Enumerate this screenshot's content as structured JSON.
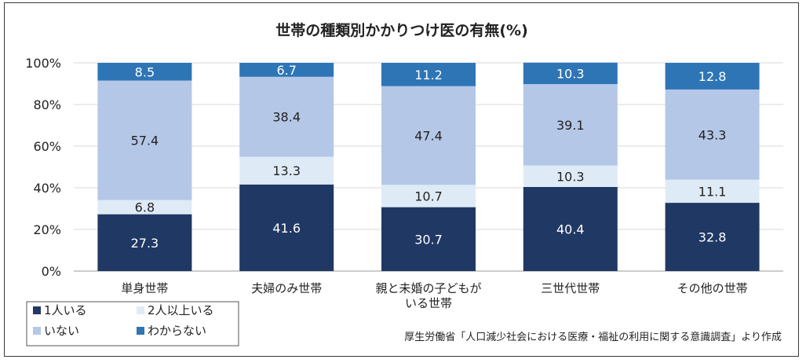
{
  "chart_data": {
    "type": "bar",
    "stacked": true,
    "title": "世帯の種類別かかりつけ医の有無(%)",
    "categories": [
      [
        "単身世帯"
      ],
      [
        "夫婦のみ世帯"
      ],
      [
        "親と未婚の子どもが",
        "いる世帯"
      ],
      [
        "三世代世帯"
      ],
      [
        "その他の世帯"
      ]
    ],
    "series": [
      {
        "name": "1人いる",
        "color": "#203864",
        "label_color": "#ffffff",
        "values": [
          27.3,
          41.6,
          30.7,
          40.4,
          32.8
        ]
      },
      {
        "name": "2人以上いる",
        "color": "#deebf7",
        "label_color": "#222222",
        "values": [
          6.8,
          13.3,
          10.7,
          10.3,
          11.1
        ]
      },
      {
        "name": "いない",
        "color": "#b4c7e7",
        "label_color": "#222222",
        "values": [
          57.4,
          38.4,
          47.4,
          39.1,
          43.3
        ]
      },
      {
        "name": "わからない",
        "color": "#2e75b6",
        "label_color": "#ffffff",
        "values": [
          8.5,
          6.7,
          11.2,
          10.3,
          12.8
        ]
      }
    ],
    "y_ticks": [
      "0%",
      "20%",
      "40%",
      "60%",
      "80%",
      "100%"
    ],
    "ylim": [
      0,
      100
    ],
    "grid": true,
    "legend_position": "bottom-left"
  },
  "source_note": "厚生労働省「人口減少社会における医療・福祉の利用に関する意識調査」より作成"
}
